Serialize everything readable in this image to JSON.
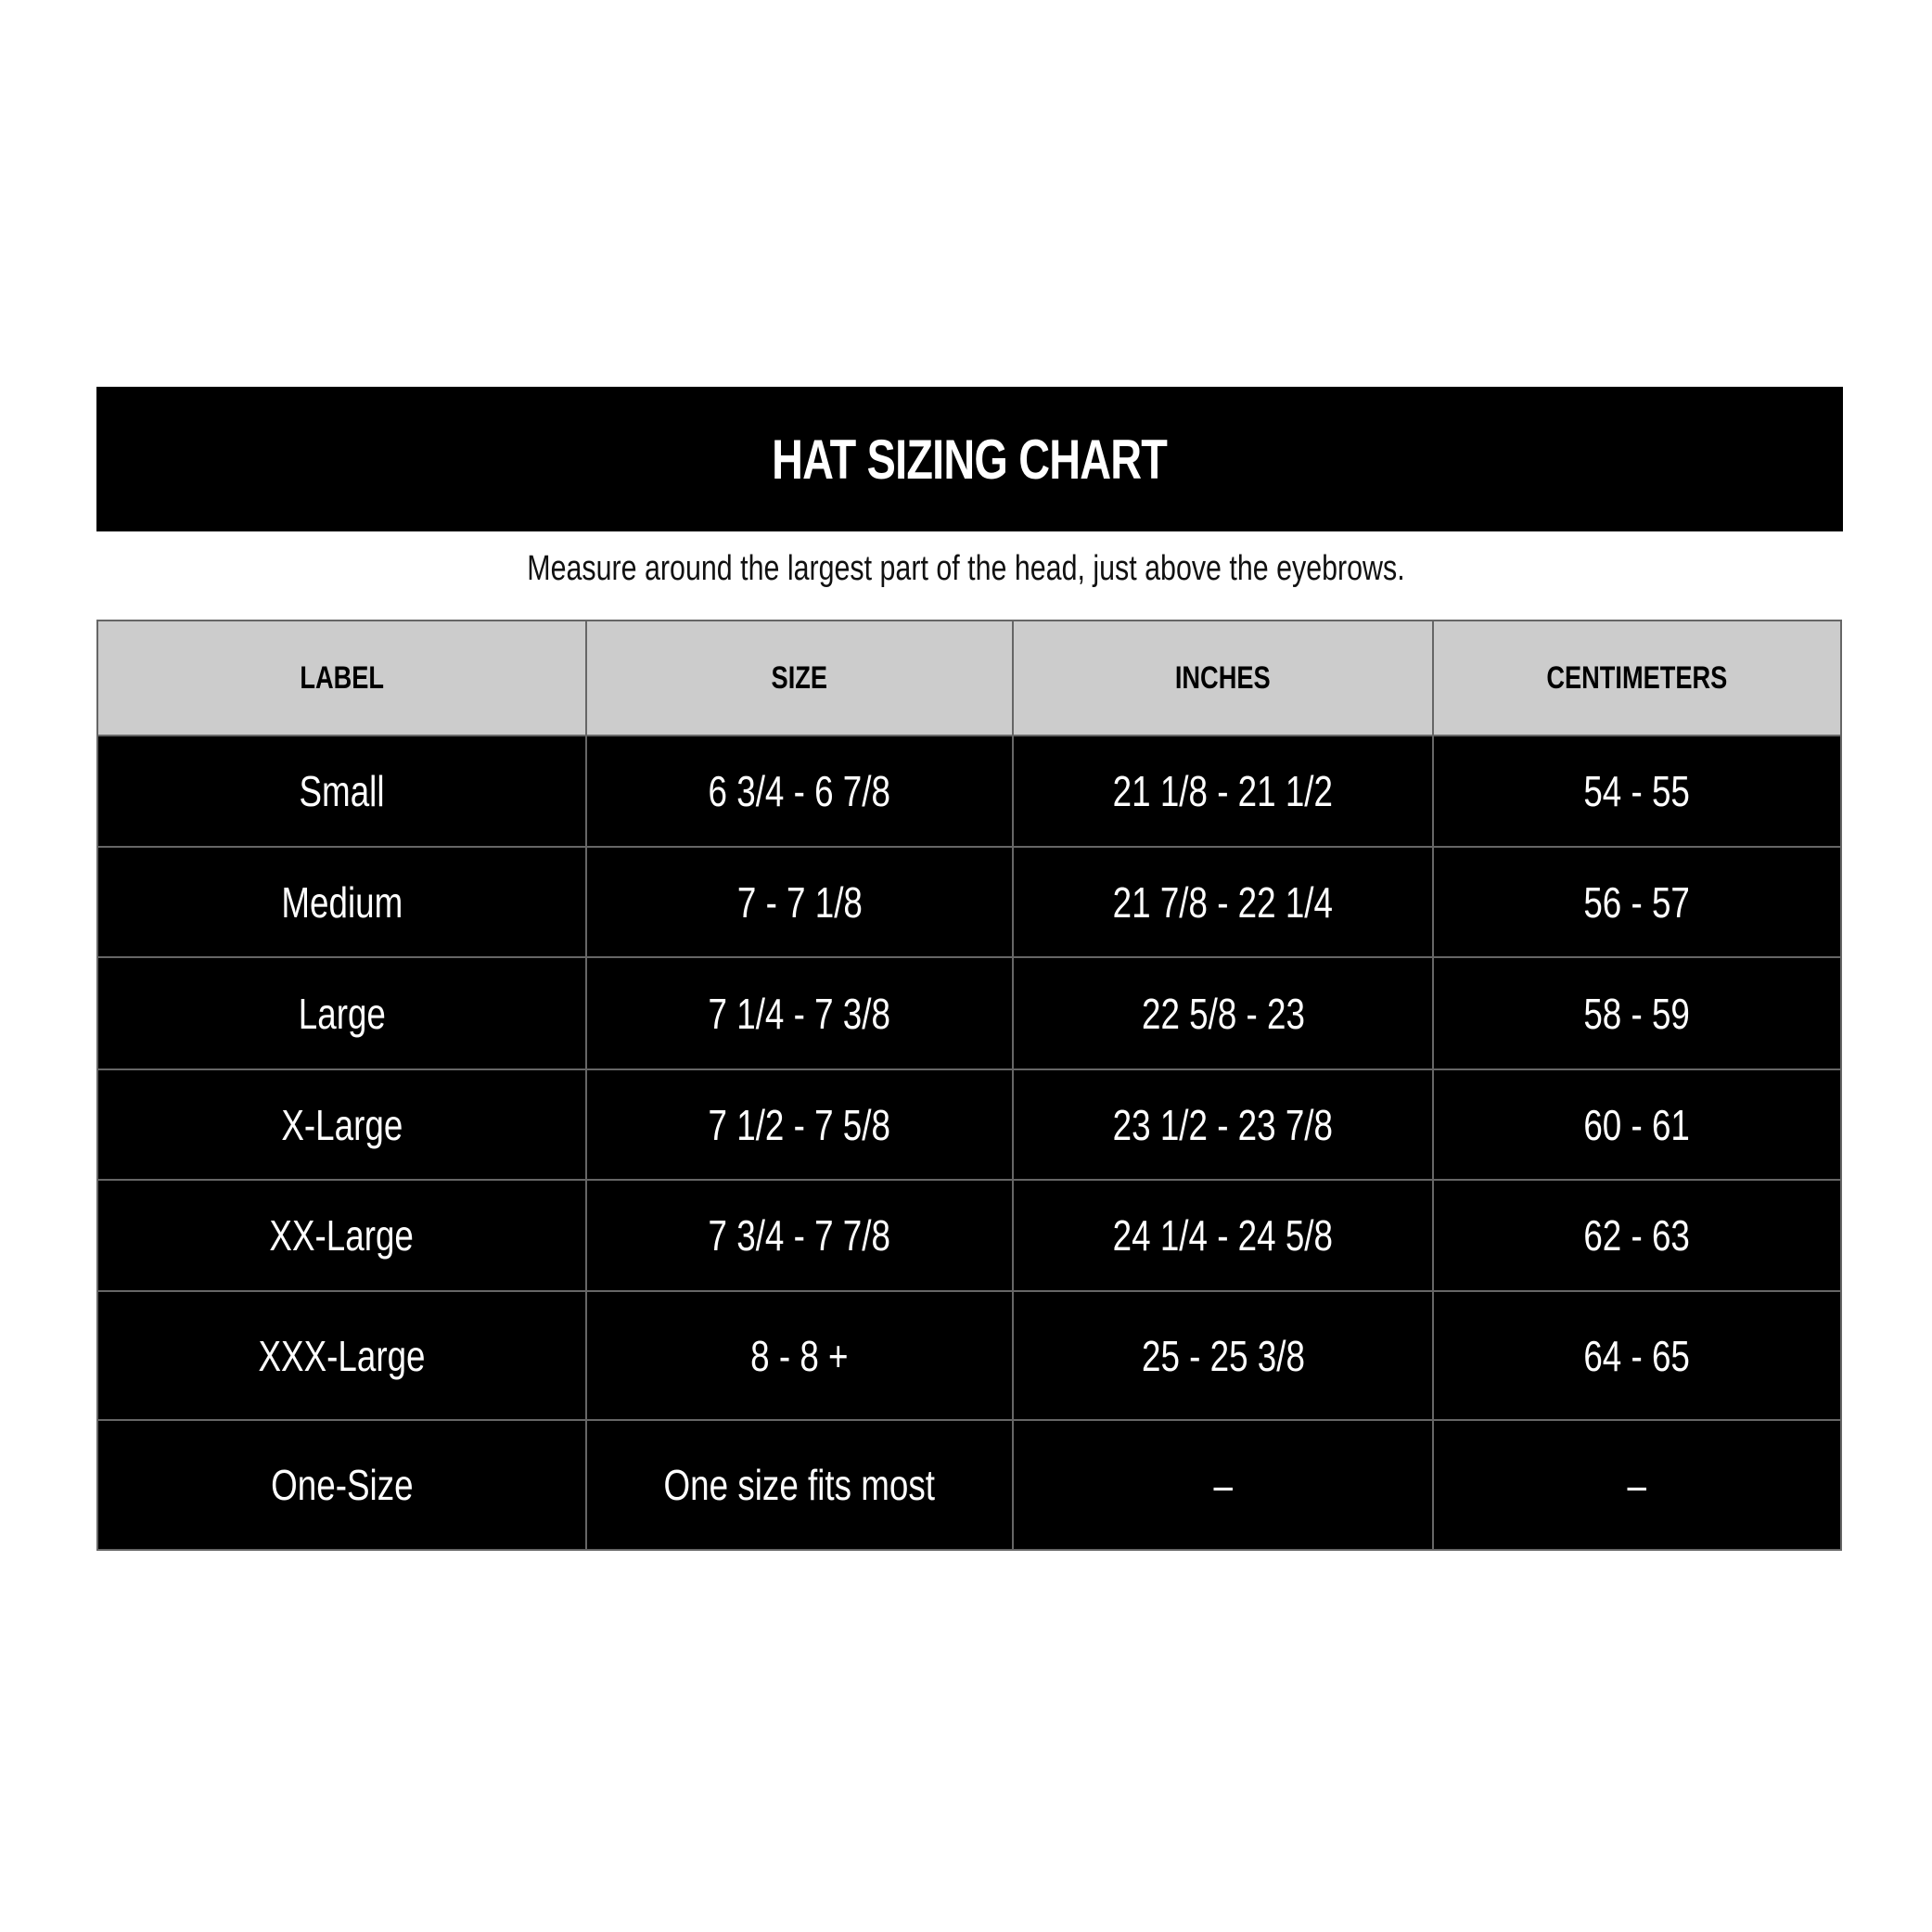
{
  "title": "HAT SIZING CHART",
  "subtitle": "Measure around the largest part of the head, just above the eyebrows.",
  "colors": {
    "title_bg": "#000000",
    "header_bg": "#cccccc",
    "row_bg": "#000000",
    "row_text": "#ffffff",
    "border": "#666666"
  },
  "table": {
    "headers": [
      "LABEL",
      "SIZE",
      "INCHES",
      "CENTIMETERS"
    ],
    "rows": [
      [
        "Small",
        "6 3/4 - 6 7/8",
        "21 1/8 - 21 1/2",
        "54 - 55"
      ],
      [
        "Medium",
        "7 - 7 1/8",
        "21 7/8 - 22 1/4",
        "56 - 57"
      ],
      [
        "Large",
        "7 1/4 - 7 3/8",
        "22 5/8 - 23",
        "58 - 59"
      ],
      [
        "X-Large",
        "7 1/2 - 7 5/8",
        "23 1/2 - 23 7/8",
        "60 - 61"
      ],
      [
        "XX-Large",
        "7 3/4 - 7 7/8",
        "24 1/4 - 24 5/8",
        "62 - 63"
      ],
      [
        "XXX-Large",
        "8 - 8 +",
        "25 - 25 3/8",
        "64 - 65"
      ],
      [
        "One-Size",
        "One size fits most",
        "–",
        "–"
      ]
    ]
  }
}
